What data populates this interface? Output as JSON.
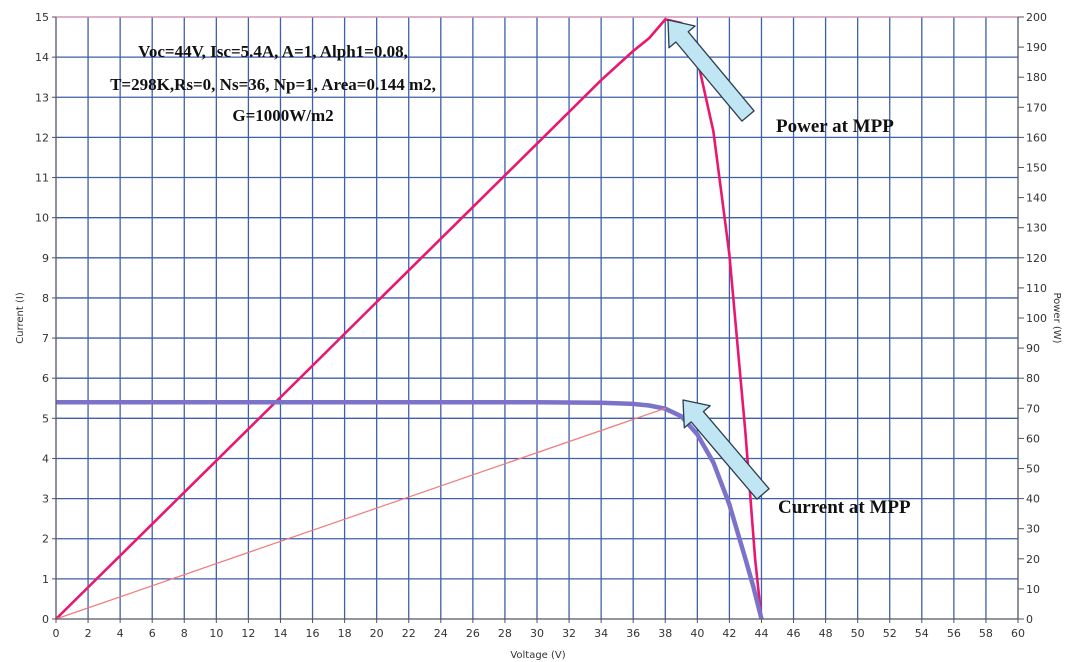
{
  "chart_data": {
    "type": "line",
    "title": "",
    "xlabel": "Voltage (V)",
    "ylabel": "Current (I)",
    "y2label": "Power (W)",
    "xlim": [
      0,
      60
    ],
    "ylim": [
      0,
      15
    ],
    "y2lim": [
      0,
      200
    ],
    "x_ticks": [
      0,
      2,
      4,
      6,
      8,
      10,
      12,
      14,
      16,
      18,
      20,
      22,
      24,
      26,
      28,
      30,
      32,
      34,
      36,
      38,
      40,
      42,
      44,
      46,
      48,
      50,
      52,
      54,
      56,
      58,
      60
    ],
    "y_ticks": [
      0,
      1,
      2,
      3,
      4,
      5,
      6,
      7,
      8,
      9,
      10,
      11,
      12,
      13,
      14,
      15
    ],
    "y2_ticks": [
      0,
      10,
      20,
      30,
      40,
      50,
      60,
      70,
      80,
      90,
      100,
      110,
      120,
      130,
      140,
      150,
      160,
      170,
      180,
      190,
      200
    ],
    "grid": true,
    "series": [
      {
        "axis": "y2",
        "color": "#e8186e",
        "points": [
          [
            0,
            0
          ],
          [
            5,
            26.3
          ],
          [
            10,
            52.6
          ],
          [
            15,
            78.9
          ],
          [
            20,
            105.3
          ],
          [
            25,
            131.6
          ],
          [
            30,
            157.9
          ],
          [
            34,
            179.0
          ],
          [
            36,
            188.7
          ],
          [
            37,
            193.0
          ],
          [
            38,
            199.2
          ],
          [
            39,
            198.0
          ],
          [
            40,
            186.0
          ],
          [
            41,
            162.0
          ],
          [
            42,
            121.0
          ],
          [
            43,
            62.0
          ],
          [
            43.6,
            20.0
          ],
          [
            44,
            0
          ]
        ]
      },
      {
        "axis": "y",
        "color": "#7b72c9",
        "points": [
          [
            0,
            5.4
          ],
          [
            30,
            5.4
          ],
          [
            34,
            5.39
          ],
          [
            36,
            5.36
          ],
          [
            37,
            5.32
          ],
          [
            38,
            5.24
          ],
          [
            39,
            5.05
          ],
          [
            40,
            4.6
          ],
          [
            41,
            3.9
          ],
          [
            42,
            2.85
          ],
          [
            43,
            1.5
          ],
          [
            43.5,
            0.8
          ],
          [
            44,
            0
          ]
        ]
      },
      {
        "axis": "y2",
        "color": "#f07a7a",
        "points": [
          [
            0,
            0
          ],
          [
            38,
            70
          ]
        ]
      }
    ],
    "annotations": [
      {
        "text": "Power at MPP",
        "at": [
          38,
          200
        ]
      },
      {
        "text": "Current at MPP",
        "at": [
          38.5,
          5.3
        ]
      }
    ],
    "params_text": [
      "Voc=44V, Isc=5.4A, A=1, Alph1=0.08,",
      "T=298K,Rs=0, Ns=36, Np=1, Area=0.144 m2,",
      "G=1000W/m2"
    ]
  }
}
